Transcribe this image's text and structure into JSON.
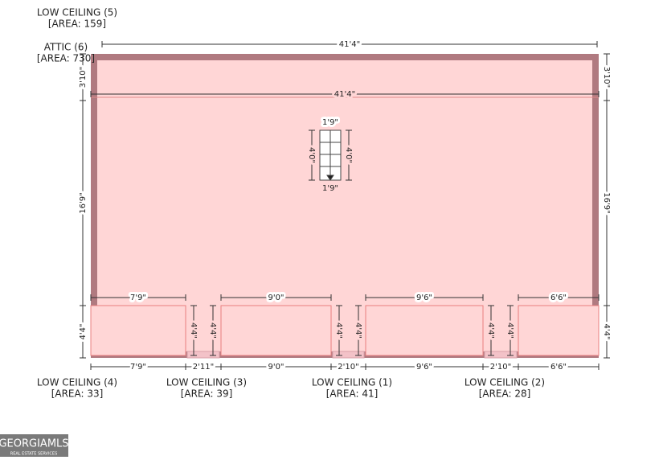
{
  "labels": [
    {
      "name": "LOW CEILING (5)",
      "area": "[AREA: 159]"
    },
    {
      "name": "ATTIC (6)",
      "area": "[AREA: 730]"
    },
    {
      "name": "LOW CEILING (4)",
      "area": "[AREA: 33]"
    },
    {
      "name": "LOW CEILING (3)",
      "area": "[AREA: 39]"
    },
    {
      "name": "LOW CEILING (1)",
      "area": "[AREA: 41]"
    },
    {
      "name": "LOW CEILING (2)",
      "area": "[AREA: 28]"
    }
  ],
  "dimensions": {
    "overall_width": "41'4\"",
    "inner_width": "41'4\"",
    "top_strip_left": "3'10\"",
    "top_strip_right": "3'10\"",
    "main_left": "16'9\"",
    "main_right": "16'9\"",
    "bottom_left": "4'4\"",
    "bottom_right": "4'4\"",
    "stair_top": "1'9\"",
    "stair_bottom": "1'9\"",
    "stair_left": "4'0\"",
    "stair_right": "4'0\""
  },
  "rooms": [
    {
      "width_top": "7'9\"",
      "width_bottom": "7'9\""
    },
    {
      "width_top": "9'0\"",
      "width_bottom": "9'0\""
    },
    {
      "width_top": "9'6\"",
      "width_bottom": "9'6\""
    },
    {
      "width_top": "6'6\"",
      "width_bottom": "6'6\""
    }
  ],
  "gaps": [
    {
      "width": "2'11\"",
      "depth_left": "4'4\"",
      "depth_right": "4'4\""
    },
    {
      "width": "2'10\"",
      "depth_left": "4'4\"",
      "depth_right": "4'4\""
    },
    {
      "width": "2'10\"",
      "depth_left": "4'4\"",
      "depth_right": "4'4\""
    }
  ],
  "logo": {
    "brand": "GEORGIAMLS",
    "tagline": "REAL ESTATE SERVICES"
  }
}
